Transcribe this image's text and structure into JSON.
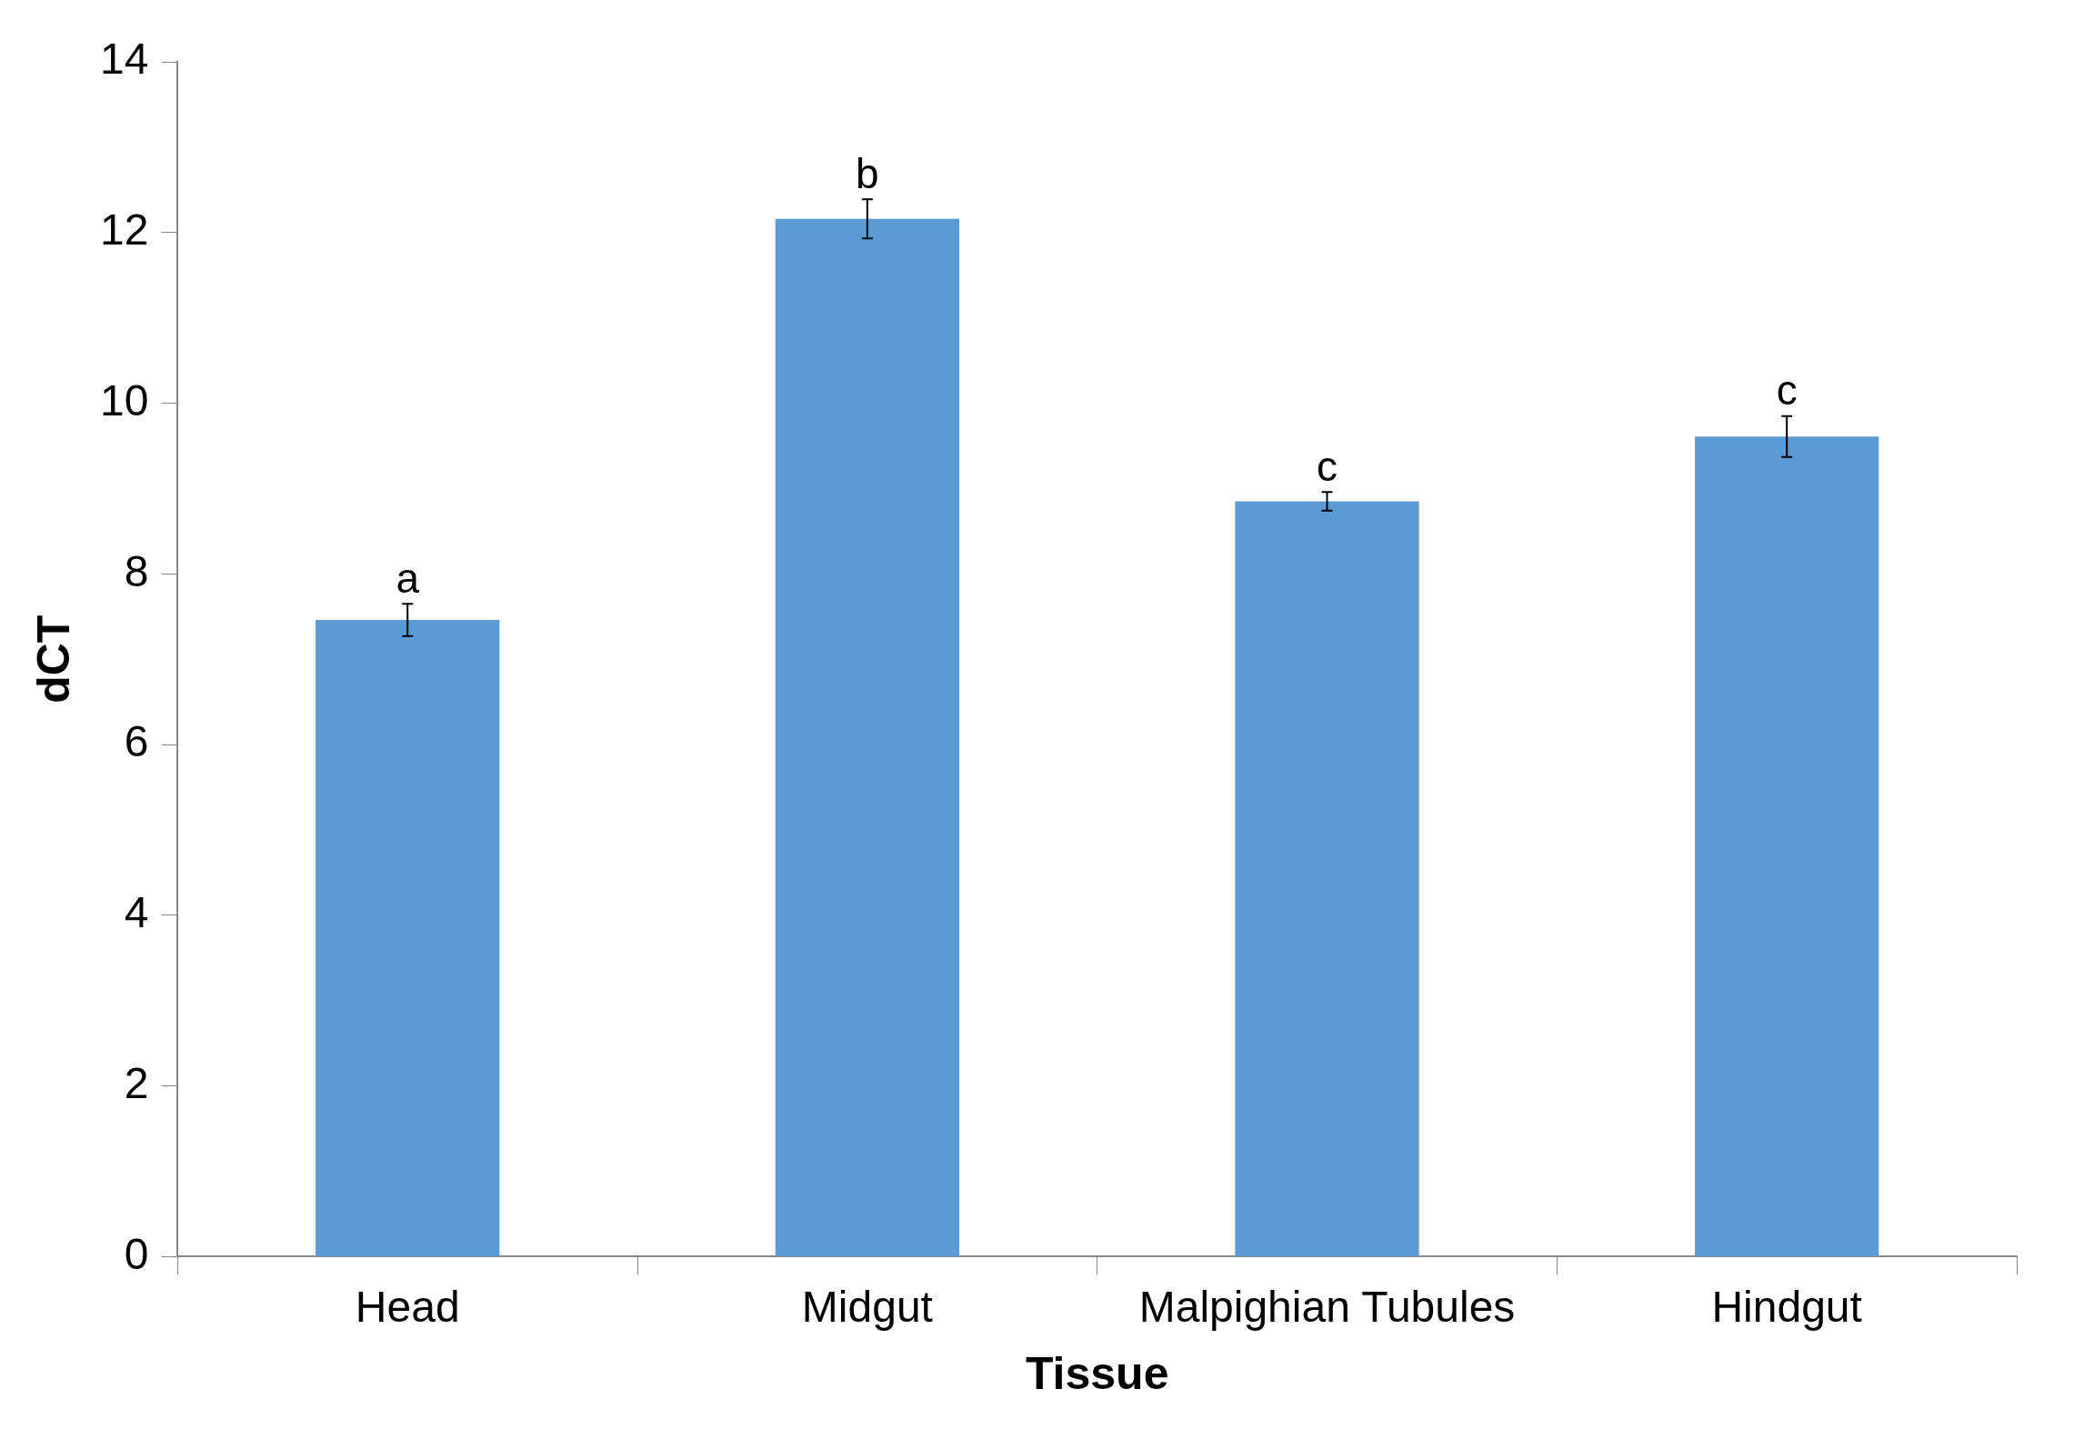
{
  "chart_data": {
    "type": "bar",
    "xlabel": "Tissue",
    "ylabel": "dCT",
    "categories": [
      "Head",
      "Midgut",
      "Malpighian Tubules",
      "Hindgut"
    ],
    "values": [
      7.46,
      12.16,
      8.85,
      9.61
    ],
    "errors": [
      0.19,
      0.23,
      0.11,
      0.24
    ],
    "color": "#5b9bd5",
    "ylim": [
      0,
      14
    ],
    "yticks": [
      0,
      2,
      4,
      6,
      8,
      10,
      12,
      14
    ],
    "grid": false,
    "legend": false,
    "annotations": [
      {
        "text": "a",
        "x": "Head",
        "y": 7.65
      },
      {
        "text": "b",
        "x": "Midgut",
        "y": 12.39
      },
      {
        "text": "c",
        "x": "Malpighian Tubules",
        "y": 8.96
      },
      {
        "text": "c",
        "x": "Hindgut",
        "y": 9.85
      }
    ]
  }
}
